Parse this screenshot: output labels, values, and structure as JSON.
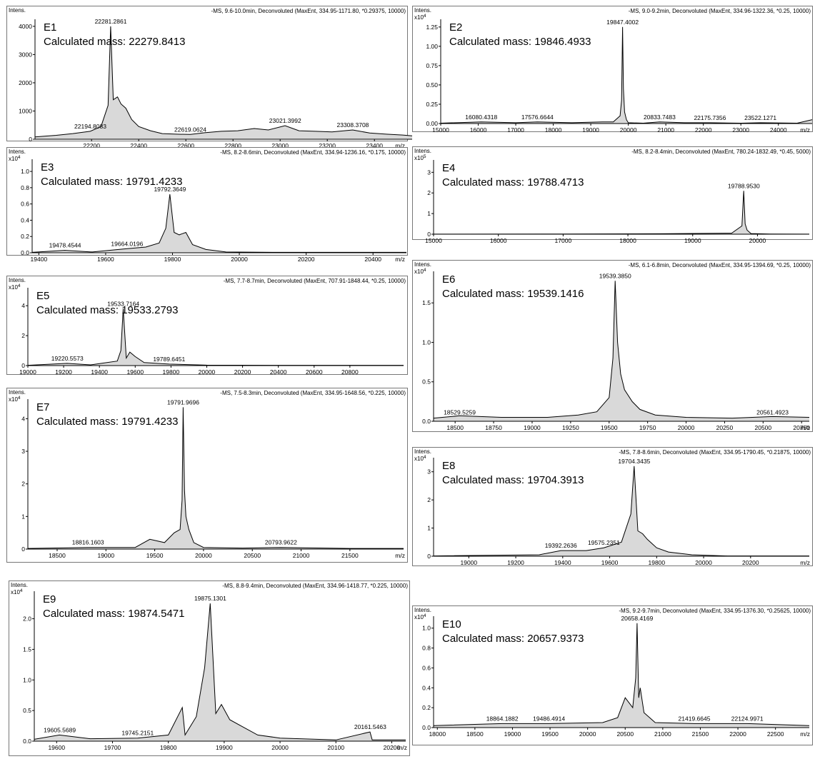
{
  "chart_data": [
    {
      "type": "line",
      "panel": "E1",
      "header": "-MS, 9.6-10.0min, Deconvoluted (MaxEnt, 334.95-1171.80, *0.29375, 10000)",
      "ylabel": "Intens.",
      "yexp": "",
      "xunit": "m/z",
      "title": "E1",
      "subtitle": "Calculated mass: 22279.8413",
      "xlim": [
        21960,
        23560
      ],
      "ylim": [
        0,
        4250
      ],
      "xticks": [
        22200,
        22400,
        22600,
        22800,
        23000,
        23200,
        23400
      ],
      "yticks": [
        0,
        1000,
        2000,
        3000,
        4000
      ],
      "ytick_labels": [
        "0",
        "1000",
        "2000",
        "3000",
        "4000"
      ],
      "peak_labels": [
        {
          "x": 22281.2861,
          "y": 4000,
          "text": "22281.2861"
        },
        {
          "x": 22194.8083,
          "y": 280,
          "text": "22194.8083"
        },
        {
          "x": 22619.0624,
          "y": 170,
          "text": "22619.0624"
        },
        {
          "x": 23021.3992,
          "y": 480,
          "text": "23021.3992"
        },
        {
          "x": 23308.3708,
          "y": 330,
          "text": "23308.3708"
        }
      ],
      "series": [
        {
          "x": [
            21960,
            22050,
            22120,
            22194,
            22240,
            22270,
            22281,
            22292,
            22310,
            22325,
            22345,
            22370,
            22400,
            22450,
            22500,
            22560,
            22619,
            22680,
            22750,
            22820,
            22890,
            22950,
            23021,
            23080,
            23150,
            23220,
            23308,
            23380,
            23450,
            23520,
            23560
          ],
          "y": [
            80,
            140,
            200,
            280,
            450,
            1200,
            4000,
            1400,
            1500,
            1250,
            1100,
            700,
            450,
            300,
            200,
            180,
            170,
            230,
            280,
            300,
            380,
            330,
            480,
            300,
            280,
            260,
            330,
            220,
            180,
            150,
            120
          ]
        }
      ]
    },
    {
      "type": "line",
      "panel": "E2",
      "header": "-MS, 9.0-9.2min, Deconvoluted (MaxEnt, 334.96-1322.36, *0.25, 10000)",
      "ylabel": "Intens.",
      "yexp": "x10",
      "yexp_power": "4",
      "xunit": "m/z",
      "title": "E2",
      "subtitle": "Calculated mass: 19846.4933",
      "xlim": [
        15000,
        24900
      ],
      "ylim": [
        0,
        1.35
      ],
      "xticks": [
        15000,
        16000,
        17000,
        18000,
        19000,
        20000,
        21000,
        22000,
        23000,
        24000
      ],
      "yticks": [
        0,
        0.25,
        0.5,
        0.75,
        1.0,
        1.25
      ],
      "ytick_labels": [
        "0.00",
        "0.25",
        "0.50",
        "0.75",
        "1.00",
        "1.25"
      ],
      "peak_labels": [
        {
          "x": 19847.4002,
          "y": 1.25,
          "text": "19847.4002"
        },
        {
          "x": 16080.4318,
          "y": 0.02,
          "text": "16080.4318"
        },
        {
          "x": 17576.6644,
          "y": 0.02,
          "text": "17576.6644"
        },
        {
          "x": 20833.7483,
          "y": 0.02,
          "text": "20833.7483"
        },
        {
          "x": 22175.7356,
          "y": 0.01,
          "text": "22175.7356"
        },
        {
          "x": 23522.1271,
          "y": 0.01,
          "text": "23522.1271"
        }
      ],
      "series": [
        {
          "x": [
            15000,
            16080,
            17000,
            17576,
            18500,
            19300,
            19600,
            19780,
            19820,
            19847,
            19870,
            19900,
            19950,
            20000,
            20400,
            20833,
            21500,
            22175,
            23000,
            23522,
            24500,
            24900
          ],
          "y": [
            0.005,
            0.02,
            0.01,
            0.02,
            0.01,
            0.02,
            0.02,
            0.1,
            0.3,
            1.25,
            0.45,
            0.15,
            0.05,
            0.01,
            0.005,
            0.02,
            0.01,
            0.01,
            0.005,
            0.01,
            0.005,
            0.05
          ]
        }
      ]
    },
    {
      "type": "line",
      "panel": "E3",
      "header": "-MS, 8.2-8.6min, Deconvoluted (MaxEnt, 334.94-1236.16, *0.175, 10000)",
      "ylabel": "Intens.",
      "yexp": "x10",
      "yexp_power": "4",
      "xunit": "m/z",
      "title": "E3",
      "subtitle": "Calculated mass: 19791.4233",
      "xlim": [
        19380,
        20500
      ],
      "ylim": [
        0,
        1.15
      ],
      "xticks": [
        19400,
        19600,
        19800,
        20000,
        20200,
        20400
      ],
      "yticks": [
        0,
        0.2,
        0.4,
        0.6,
        0.8,
        1.0
      ],
      "ytick_labels": [
        "0.0",
        "0.2",
        "0.4",
        "0.6",
        "0.8",
        "1.0"
      ],
      "peak_labels": [
        {
          "x": 19792.3649,
          "y": 0.72,
          "text": "19792.3649"
        },
        {
          "x": 19478.4544,
          "y": 0.03,
          "text": "19478.4544"
        },
        {
          "x": 19664.0196,
          "y": 0.05,
          "text": "19664.0196"
        }
      ],
      "series": [
        {
          "x": [
            19380,
            19478,
            19560,
            19664,
            19720,
            19760,
            19780,
            19792,
            19805,
            19820,
            19840,
            19860,
            19900,
            19960,
            20100,
            20300,
            20500
          ],
          "y": [
            0.005,
            0.03,
            0.01,
            0.05,
            0.07,
            0.12,
            0.3,
            0.72,
            0.25,
            0.22,
            0.25,
            0.1,
            0.04,
            0.01,
            0.005,
            0.005,
            0.005
          ]
        }
      ]
    },
    {
      "type": "line",
      "panel": "E4",
      "header": "-MS, 8.2-8.4min, Deconvoluted (MaxEnt, 780.24-1832.49, *0.45, 5000)",
      "ylabel": "Intens.",
      "yexp": "x10",
      "yexp_power": "5",
      "xunit": "",
      "title": "E4",
      "subtitle": "Calculated mass: 19788.4713",
      "xlim": [
        15000,
        20800
      ],
      "ylim": [
        0,
        3.6
      ],
      "xticks": [
        15000,
        16000,
        17000,
        18000,
        19000,
        20000
      ],
      "yticks": [
        0,
        1,
        2,
        3
      ],
      "ytick_labels": [
        "0",
        "1",
        "2",
        "3"
      ],
      "peak_labels": [
        {
          "x": 19788.953,
          "y": 2.1,
          "text": "19788.9530"
        }
      ],
      "series": [
        {
          "x": [
            15000,
            17000,
            18500,
            19600,
            19760,
            19788,
            19810,
            19840,
            19900,
            20200,
            20800
          ],
          "y": [
            0.005,
            0.01,
            0.02,
            0.05,
            0.4,
            2.1,
            0.5,
            0.2,
            0.03,
            0.01,
            0.005
          ]
        }
      ]
    },
    {
      "type": "line",
      "panel": "E5",
      "header": "-MS, 7.7-8.7min, Deconvoluted (MaxEnt, 707.91-1848.44, *0.25, 10000)",
      "ylabel": "Intens.",
      "yexp": "x10",
      "yexp_power": "4",
      "xunit": "",
      "title": "E5",
      "subtitle": "Calculated mass: 19533.2793",
      "xlim": [
        19000,
        21100
      ],
      "ylim": [
        0,
        5.2
      ],
      "xticks": [
        19000,
        19200,
        19400,
        19600,
        19800,
        20000,
        20200,
        20400,
        20600,
        20800
      ],
      "yticks": [
        0,
        2,
        4
      ],
      "ytick_labels": [
        "0",
        "2",
        "4"
      ],
      "peak_labels": [
        {
          "x": 19533.7164,
          "y": 3.8,
          "text": "19533.7164"
        },
        {
          "x": 19220.5573,
          "y": 0.15,
          "text": "19220.5573"
        },
        {
          "x": 19789.6451,
          "y": 0.1,
          "text": "19789.6451"
        }
      ],
      "series": [
        {
          "x": [
            19000,
            19220,
            19350,
            19500,
            19520,
            19533,
            19550,
            19570,
            19600,
            19650,
            19789,
            20000,
            20400,
            21100
          ],
          "y": [
            0.02,
            0.15,
            0.05,
            0.3,
            1.0,
            3.8,
            0.5,
            0.9,
            0.6,
            0.2,
            0.1,
            0.03,
            0.02,
            0.02
          ]
        }
      ]
    },
    {
      "type": "line",
      "panel": "E6",
      "header": "-MS, 6.1-6.8min, Deconvoluted (MaxEnt, 334.95-1394.69, *0.25, 10000)",
      "ylabel": "Intens.",
      "yexp": "x10",
      "yexp_power": "4",
      "xunit": "m/z",
      "title": "E6",
      "subtitle": "Calculated mass: 19539.1416",
      "xlim": [
        18360,
        20800
      ],
      "ylim": [
        0,
        1.9
      ],
      "xticks": [
        18500,
        18750,
        19000,
        19250,
        19500,
        19750,
        20000,
        20250,
        20500,
        20750
      ],
      "yticks": [
        0,
        0.5,
        1.0,
        1.5
      ],
      "ytick_labels": [
        "0.0",
        "0.5",
        "1.0",
        "1.5"
      ],
      "peak_labels": [
        {
          "x": 19539.385,
          "y": 1.78,
          "text": "19539.3850"
        },
        {
          "x": 18529.5259,
          "y": 0.05,
          "text": "18529.5259"
        },
        {
          "x": 20561.4923,
          "y": 0.05,
          "text": "20561.4923"
        }
      ],
      "series": [
        {
          "x": [
            18360,
            18529,
            18800,
            19100,
            19300,
            19420,
            19500,
            19525,
            19539,
            19555,
            19575,
            19600,
            19650,
            19700,
            19800,
            20000,
            20300,
            20561,
            20800
          ],
          "y": [
            0.04,
            0.07,
            0.05,
            0.05,
            0.08,
            0.12,
            0.3,
            0.8,
            1.78,
            1.0,
            0.6,
            0.4,
            0.25,
            0.15,
            0.08,
            0.05,
            0.04,
            0.06,
            0.05
          ]
        }
      ]
    },
    {
      "type": "line",
      "panel": "E7",
      "header": "-MS, 7.5-8.3min, Deconvoluted (MaxEnt, 334.95-1648.56, *0.225, 10000)",
      "ylabel": "Intens.",
      "yexp": "x10",
      "yexp_power": "4",
      "xunit": "m/z",
      "title": "E7",
      "subtitle": "Calculated mass: 19791.4233",
      "xlim": [
        18200,
        22050
      ],
      "ylim": [
        0,
        4.6
      ],
      "xticks": [
        18500,
        19000,
        19500,
        20000,
        20500,
        21000,
        21500
      ],
      "yticks": [
        0,
        1,
        2,
        3,
        4
      ],
      "ytick_labels": [
        "0",
        "1",
        "2",
        "3",
        "4"
      ],
      "peak_labels": [
        {
          "x": 19791.9696,
          "y": 4.35,
          "text": "19791.9696"
        },
        {
          "x": 18816.1603,
          "y": 0.05,
          "text": "18816.1603"
        },
        {
          "x": 20793.9622,
          "y": 0.05,
          "text": "20793.9622"
        }
      ],
      "series": [
        {
          "x": [
            18200,
            18816,
            19300,
            19450,
            19600,
            19700,
            19760,
            19780,
            19791,
            19805,
            19820,
            19850,
            19900,
            20000,
            20400,
            20793,
            21500,
            22050
          ],
          "y": [
            0.02,
            0.05,
            0.05,
            0.3,
            0.2,
            0.5,
            0.6,
            1.5,
            4.35,
            1.8,
            1.0,
            0.6,
            0.2,
            0.05,
            0.03,
            0.05,
            0.02,
            0.02
          ]
        }
      ]
    },
    {
      "type": "line",
      "panel": "E8",
      "header": "-MS, 7.8-8.6min, Deconvoluted (MaxEnt, 334.95-1790.45, *0.21875, 10000)",
      "ylabel": "Intens.",
      "yexp": "x10",
      "yexp_power": "4",
      "xunit": "m/z",
      "title": "E8",
      "subtitle": "Calculated mass: 19704.3913",
      "xlim": [
        18850,
        20450
      ],
      "ylim": [
        0,
        3.5
      ],
      "xticks": [
        19000,
        19200,
        19400,
        19600,
        19800,
        20000,
        20200
      ],
      "yticks": [
        0,
        1,
        2,
        3
      ],
      "ytick_labels": [
        "0",
        "1",
        "2",
        "3"
      ],
      "peak_labels": [
        {
          "x": 19704.3435,
          "y": 3.2,
          "text": "19704.3435"
        },
        {
          "x": 19392.2636,
          "y": 0.2,
          "text": "19392.2636"
        },
        {
          "x": 19575.2351,
          "y": 0.3,
          "text": "19575.2351"
        }
      ],
      "series": [
        {
          "x": [
            18850,
            19300,
            19392,
            19500,
            19575,
            19650,
            19690,
            19704,
            19720,
            19740,
            19760,
            19800,
            19850,
            19950,
            20100,
            20450
          ],
          "y": [
            0.01,
            0.05,
            0.2,
            0.2,
            0.3,
            0.5,
            1.5,
            3.2,
            0.9,
            0.8,
            0.6,
            0.3,
            0.15,
            0.05,
            0.01,
            0.01
          ]
        }
      ]
    },
    {
      "type": "line",
      "panel": "E9",
      "header": "-MS, 8.8-9.4min, Deconvoluted (MaxEnt, 334.96-1418.77, *0.225, 10000)",
      "ylabel": "Intens.",
      "yexp": "x10",
      "yexp_power": "4",
      "xunit": "m/z",
      "title": "E9",
      "subtitle": "Calculated mass: 19874.5471",
      "xlim": [
        19560,
        20225
      ],
      "ylim": [
        0,
        2.45
      ],
      "xticks": [
        19600,
        19700,
        19800,
        19900,
        20000,
        20100,
        20200
      ],
      "yticks": [
        0,
        0.5,
        1.0,
        1.5,
        2.0
      ],
      "ytick_labels": [
        "0.0",
        "0.5",
        "1.0",
        "1.5",
        "2.0"
      ],
      "peak_labels": [
        {
          "x": 19875.1301,
          "y": 2.25,
          "text": "19875.1301"
        },
        {
          "x": 19605.5689,
          "y": 0.1,
          "text": "19605.5689"
        },
        {
          "x": 19745.2151,
          "y": 0.05,
          "text": "19745.2151"
        },
        {
          "x": 20161.5463,
          "y": 0.15,
          "text": "20161.5463"
        }
      ],
      "series": [
        {
          "x": [
            19560,
            19605,
            19660,
            19745,
            19800,
            19825,
            19830,
            19850,
            19865,
            19875,
            19885,
            19895,
            19910,
            19930,
            19960,
            20000,
            20100,
            20161,
            20165,
            20225
          ],
          "y": [
            0.03,
            0.1,
            0.04,
            0.05,
            0.1,
            0.55,
            0.1,
            0.4,
            1.2,
            2.25,
            0.45,
            0.6,
            0.35,
            0.25,
            0.1,
            0.05,
            0.02,
            0.15,
            0.02,
            0.02
          ]
        }
      ]
    },
    {
      "type": "line",
      "panel": "E10",
      "header": "-MS, 9.2-9.7min, Deconvoluted (MaxEnt, 334.95-1376.30, *0.25625, 10000)",
      "ylabel": "Intens.",
      "yexp": "x10",
      "yexp_power": "4",
      "xunit": "m/z",
      "title": "E10",
      "subtitle": "Calculated mass: 20657.9373",
      "xlim": [
        17950,
        22950
      ],
      "ylim": [
        0,
        1.12
      ],
      "xticks": [
        18000,
        18500,
        19000,
        19500,
        20000,
        20500,
        21000,
        21500,
        22000,
        22500
      ],
      "yticks": [
        0,
        0.2,
        0.4,
        0.6,
        0.8,
        1.0
      ],
      "ytick_labels": [
        "0.0",
        "0.2",
        "0.4",
        "0.6",
        "0.8",
        "1.0"
      ],
      "peak_labels": [
        {
          "x": 20658.4169,
          "y": 1.05,
          "text": "20658.4169"
        },
        {
          "x": 18864.1882,
          "y": 0.04,
          "text": "18864.1882"
        },
        {
          "x": 19486.4914,
          "y": 0.04,
          "text": "19486.4914"
        },
        {
          "x": 21419.6645,
          "y": 0.04,
          "text": "21419.6645"
        },
        {
          "x": 22124.9971,
          "y": 0.04,
          "text": "22124.9971"
        }
      ],
      "series": [
        {
          "x": [
            17950,
            18864,
            19486,
            20200,
            20400,
            20500,
            20600,
            20640,
            20658,
            20680,
            20700,
            20750,
            20900,
            21419,
            22124,
            22950
          ],
          "y": [
            0.02,
            0.04,
            0.04,
            0.05,
            0.1,
            0.3,
            0.2,
            0.5,
            1.05,
            0.3,
            0.4,
            0.15,
            0.05,
            0.04,
            0.04,
            0.02
          ]
        }
      ]
    }
  ]
}
